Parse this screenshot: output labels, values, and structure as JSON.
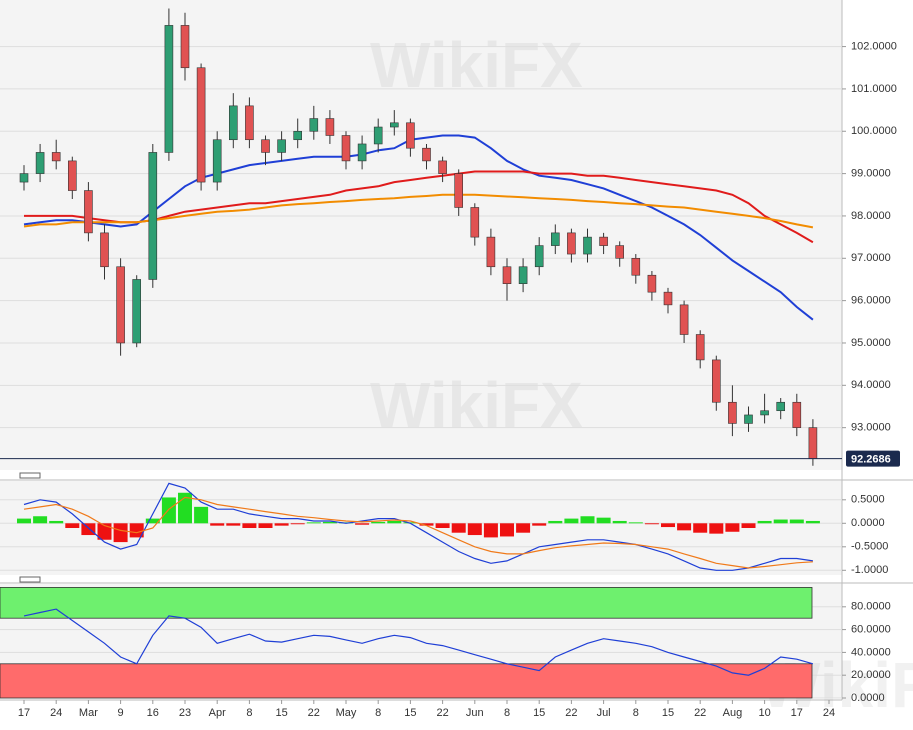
{
  "watermark": "WikiFX",
  "chart_data": [
    {
      "type": "candlestick",
      "categories": [
        "17",
        null,
        "24",
        null,
        "Mar",
        null,
        "9",
        null,
        "16",
        null,
        "23",
        null,
        "Apr",
        null,
        "8",
        null,
        "15",
        null,
        "22",
        null,
        "May",
        null,
        "8",
        null,
        "15",
        null,
        "22",
        null,
        "Jun",
        null,
        "8",
        null,
        "15",
        null,
        "22",
        null,
        "Jul",
        null,
        "8",
        null,
        "15",
        null,
        "22",
        null,
        "Aug",
        null,
        "10",
        null,
        "17",
        null,
        "24"
      ],
      "open": [
        98.8,
        99.0,
        99.5,
        99.3,
        98.6,
        97.6,
        96.8,
        95.0,
        96.5,
        99.5,
        102.5,
        101.5,
        98.8,
        99.8,
        100.6,
        99.8,
        99.5,
        99.8,
        100.0,
        100.3,
        99.9,
        99.3,
        99.7,
        100.1,
        100.2,
        99.6,
        99.3,
        99.0,
        98.2,
        97.5,
        96.8,
        96.4,
        96.8,
        97.3,
        97.6,
        97.1,
        97.5,
        97.3,
        97.0,
        96.6,
        96.2,
        95.9,
        95.2,
        94.6,
        93.6,
        93.1,
        93.3,
        93.4,
        93.6,
        93.0,
        null
      ],
      "high": [
        99.2,
        99.7,
        99.8,
        99.4,
        98.8,
        97.8,
        97.0,
        96.6,
        99.7,
        102.9,
        102.8,
        101.6,
        100.0,
        100.9,
        100.8,
        99.9,
        100.0,
        100.3,
        100.6,
        100.5,
        100.0,
        99.9,
        100.3,
        100.5,
        100.3,
        99.7,
        99.4,
        99.1,
        98.3,
        97.7,
        97.0,
        97.0,
        97.5,
        97.8,
        97.7,
        97.7,
        97.6,
        97.4,
        97.1,
        96.7,
        96.3,
        96.0,
        95.3,
        94.7,
        94.0,
        93.5,
        93.8,
        93.7,
        93.8,
        93.2,
        null
      ],
      "low": [
        98.6,
        98.8,
        99.1,
        98.4,
        97.4,
        96.5,
        94.7,
        94.9,
        96.3,
        99.3,
        101.2,
        98.6,
        98.6,
        99.6,
        99.6,
        99.2,
        99.3,
        99.6,
        99.8,
        99.7,
        99.1,
        99.1,
        99.5,
        99.9,
        99.4,
        99.1,
        98.8,
        98.0,
        97.3,
        96.6,
        96.0,
        96.2,
        96.6,
        97.1,
        96.9,
        96.9,
        97.1,
        96.8,
        96.4,
        96.0,
        95.7,
        95.0,
        94.4,
        93.4,
        92.8,
        92.9,
        93.1,
        93.2,
        92.8,
        92.1,
        null
      ],
      "close": [
        99.0,
        99.5,
        99.3,
        98.6,
        97.6,
        96.8,
        95.0,
        96.5,
        99.5,
        102.5,
        101.5,
        98.8,
        99.8,
        100.6,
        99.8,
        99.5,
        99.8,
        100.0,
        100.3,
        99.9,
        99.3,
        99.7,
        100.1,
        100.2,
        99.6,
        99.3,
        99.0,
        98.2,
        97.5,
        96.8,
        96.4,
        96.8,
        97.3,
        97.6,
        97.1,
        97.5,
        97.3,
        97.0,
        96.6,
        96.2,
        95.9,
        95.2,
        94.6,
        93.6,
        93.1,
        93.3,
        93.4,
        93.6,
        93.0,
        92.2686,
        null
      ],
      "up_color": "#2e9e73",
      "down_color": "#e05252",
      "lines": [
        {
          "color": "#1f3fd6",
          "values": [
            97.8,
            97.85,
            97.9,
            97.9,
            97.85,
            97.8,
            97.75,
            97.8,
            98.1,
            98.4,
            98.7,
            98.9,
            99.0,
            99.1,
            99.2,
            99.25,
            99.3,
            99.35,
            99.4,
            99.4,
            99.4,
            99.45,
            99.55,
            99.6,
            99.8,
            99.85,
            99.9,
            99.9,
            99.85,
            99.6,
            99.3,
            99.1,
            98.95,
            98.9,
            98.85,
            98.75,
            98.65,
            98.5,
            98.35,
            98.2,
            98.0,
            97.8,
            97.55,
            97.25,
            96.95,
            96.7,
            96.45,
            96.2,
            95.85,
            95.55,
            null
          ]
        },
        {
          "color": "#e01b1b",
          "values": [
            98.0,
            98.0,
            98.0,
            98.0,
            97.95,
            97.9,
            97.85,
            97.85,
            97.9,
            98.0,
            98.1,
            98.15,
            98.2,
            98.25,
            98.3,
            98.3,
            98.35,
            98.4,
            98.45,
            98.5,
            98.6,
            98.65,
            98.7,
            98.8,
            98.85,
            98.9,
            98.95,
            99.0,
            99.05,
            99.05,
            99.05,
            99.05,
            99.0,
            99.0,
            99.0,
            98.95,
            98.95,
            98.9,
            98.85,
            98.8,
            98.75,
            98.7,
            98.65,
            98.6,
            98.5,
            98.3,
            98.0,
            97.8,
            97.6,
            97.38,
            null
          ]
        },
        {
          "color": "#f28c00",
          "values": [
            97.75,
            97.8,
            97.8,
            97.85,
            97.85,
            97.85,
            97.85,
            97.85,
            97.9,
            97.95,
            98.0,
            98.05,
            98.1,
            98.12,
            98.15,
            98.2,
            98.25,
            98.28,
            98.3,
            98.33,
            98.35,
            98.38,
            98.4,
            98.42,
            98.45,
            98.47,
            98.5,
            98.5,
            98.5,
            98.48,
            98.46,
            98.44,
            98.42,
            98.4,
            98.38,
            98.35,
            98.33,
            98.3,
            98.28,
            98.25,
            98.22,
            98.2,
            98.15,
            98.1,
            98.05,
            98.0,
            97.95,
            97.88,
            97.8,
            97.73,
            null
          ]
        }
      ],
      "last_price": 92.2686,
      "ylim": [
        92.0,
        103.1
      ],
      "yticks": [
        {
          "value": 93,
          "label": "93.0000"
        },
        {
          "value": 94,
          "label": "94.0000"
        },
        {
          "value": 95,
          "label": "95.0000"
        },
        {
          "value": 96,
          "label": "96.0000"
        },
        {
          "value": 97,
          "label": "97.0000"
        },
        {
          "value": 98,
          "label": "98.0000"
        },
        {
          "value": 99,
          "label": "99.0000"
        },
        {
          "value": 100,
          "label": "100.0000"
        },
        {
          "value": 101,
          "label": "101.0000"
        },
        {
          "value": 102,
          "label": "102.0000"
        }
      ],
      "grid": true
    },
    {
      "type": "macd",
      "histogram": [
        0.1,
        0.15,
        0.05,
        -0.1,
        -0.25,
        -0.35,
        -0.4,
        -0.3,
        0.1,
        0.55,
        0.65,
        0.35,
        -0.05,
        -0.05,
        -0.1,
        -0.1,
        -0.05,
        -0.02,
        0.02,
        0.03,
        0.02,
        -0.03,
        0.03,
        0.05,
        0.02,
        -0.05,
        -0.1,
        -0.2,
        -0.25,
        -0.3,
        -0.28,
        -0.2,
        -0.05,
        0.05,
        0.1,
        0.15,
        0.12,
        0.05,
        0.02,
        -0.02,
        -0.08,
        -0.15,
        -0.2,
        -0.22,
        -0.18,
        -0.1,
        0.05,
        0.08,
        0.08,
        0.05,
        null
      ],
      "pos_color": "#22dd22",
      "neg_color": "#ee1111",
      "lines": [
        {
          "color": "#1f3fd6",
          "values": [
            0.4,
            0.5,
            0.45,
            0.2,
            -0.1,
            -0.4,
            -0.55,
            -0.45,
            0.2,
            0.85,
            0.75,
            0.45,
            0.3,
            0.3,
            0.2,
            0.15,
            0.1,
            0.1,
            0.05,
            0.05,
            0.0,
            0.05,
            0.1,
            0.1,
            0.0,
            -0.2,
            -0.4,
            -0.6,
            -0.75,
            -0.85,
            -0.8,
            -0.65,
            -0.5,
            -0.45,
            -0.4,
            -0.35,
            -0.35,
            -0.4,
            -0.45,
            -0.55,
            -0.65,
            -0.8,
            -0.95,
            -1.0,
            -1.0,
            -0.95,
            -0.85,
            -0.75,
            -0.75,
            -0.8,
            null
          ]
        },
        {
          "color": "#f07a1a",
          "values": [
            0.3,
            0.35,
            0.4,
            0.3,
            0.15,
            -0.05,
            -0.15,
            -0.2,
            -0.1,
            0.3,
            0.55,
            0.5,
            0.4,
            0.35,
            0.3,
            0.25,
            0.2,
            0.15,
            0.12,
            0.08,
            0.05,
            0.03,
            0.05,
            0.07,
            0.05,
            -0.05,
            -0.2,
            -0.35,
            -0.5,
            -0.6,
            -0.65,
            -0.65,
            -0.58,
            -0.52,
            -0.48,
            -0.45,
            -0.42,
            -0.43,
            -0.45,
            -0.5,
            -0.55,
            -0.65,
            -0.75,
            -0.85,
            -0.9,
            -0.95,
            -0.92,
            -0.88,
            -0.84,
            -0.82,
            null
          ]
        }
      ],
      "ylim": [
        -1.1,
        0.9
      ],
      "yticks": [
        {
          "value": 0.5,
          "label": "0.5000"
        },
        {
          "value": 0,
          "label": "0.0000"
        },
        {
          "value": -0.5,
          "label": "-0.5000"
        },
        {
          "value": -1,
          "label": "-1.0000"
        }
      ],
      "grid": true
    },
    {
      "type": "rsi",
      "values": [
        72,
        75,
        78,
        68,
        58,
        48,
        36,
        30,
        55,
        72,
        70,
        62,
        48,
        52,
        56,
        50,
        49,
        52,
        55,
        54,
        51,
        48,
        52,
        55,
        53,
        48,
        46,
        42,
        38,
        34,
        30,
        27,
        24,
        36,
        42,
        48,
        52,
        50,
        48,
        45,
        40,
        36,
        32,
        28,
        22,
        20,
        26,
        36,
        34,
        30,
        null
      ],
      "color": "#1f3fd6",
      "overbought": [
        70,
        97
      ],
      "overbought_color": "#6ef06e",
      "oversold": [
        0,
        30
      ],
      "oversold_color": "#ff6b6b",
      "ylim": [
        0,
        100
      ],
      "yticks": [
        {
          "value": 0,
          "label": "0.0000"
        },
        {
          "value": 20,
          "label": "20.0000"
        },
        {
          "value": 40,
          "label": "40.0000"
        },
        {
          "value": 60,
          "label": "60.0000"
        },
        {
          "value": 80,
          "label": "80.0000"
        }
      ],
      "grid": true
    }
  ]
}
